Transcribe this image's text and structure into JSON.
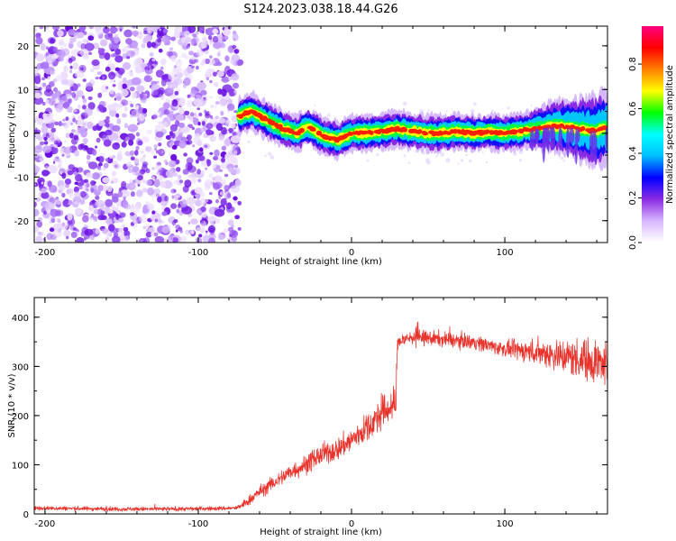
{
  "title": "S124.2023.038.18.44.G26",
  "chart_data": [
    {
      "type": "heatmap",
      "xlabel": "Height of straight line (km)",
      "ylabel": "Frequency (Hz)",
      "xlim": [
        -207,
        167
      ],
      "ylim": [
        -25,
        24.5
      ],
      "x_ticks": [
        -200,
        -100,
        0,
        100
      ],
      "y_ticks": [
        -20,
        -10,
        0,
        10,
        20
      ],
      "colorbar": {
        "label": "Normalized spectral amplitude",
        "ticks": [
          0.0,
          0.2,
          0.4,
          0.6,
          0.8
        ],
        "range": [
          0,
          0.97
        ],
        "colors": [
          "#ffffff",
          "#d8b8ff",
          "#8a2be2",
          "#0000ff",
          "#00bfff",
          "#00ffff",
          "#00ff00",
          "#ffff00",
          "#ff8000",
          "#ff0000",
          "#ff0080"
        ]
      },
      "noise_region_x": [
        -207,
        -73
      ],
      "signal_trace": {
        "x": [
          -73,
          -65,
          -60,
          -55,
          -50,
          -45,
          -40,
          -35,
          -30,
          -25,
          -20,
          -15,
          -10,
          -5,
          0,
          10,
          20,
          30,
          40,
          50,
          60,
          70,
          80,
          90,
          100,
          110,
          120,
          130,
          140,
          150,
          160,
          167
        ],
        "freq": [
          4,
          5,
          4,
          3,
          2,
          1,
          0.5,
          0,
          1.5,
          1,
          -0.5,
          -1,
          -1.5,
          -1,
          0,
          0,
          0.5,
          1,
          0.5,
          0,
          0,
          0.5,
          0,
          0.3,
          0,
          0.5,
          1,
          1.5,
          1.5,
          1,
          0.5,
          1.5
        ]
      }
    },
    {
      "type": "line",
      "xlabel": "Height of straight line (km)",
      "ylabel": "SNR (10 * v/v)",
      "xlim": [
        -207,
        167
      ],
      "ylim": [
        0,
        440
      ],
      "x_ticks": [
        -200,
        -100,
        0,
        100
      ],
      "y_ticks": [
        0,
        100,
        200,
        300,
        400
      ],
      "color": "#e8332c",
      "series": [
        {
          "x": [
            -207,
            -180,
            -150,
            -120,
            -90,
            -75,
            -70,
            -60,
            -50,
            -40,
            -30,
            -20,
            -10,
            0,
            10,
            20,
            29,
            30,
            40,
            60,
            80,
            100,
            120,
            140,
            160,
            167
          ],
          "values": [
            12,
            11,
            10,
            10,
            11,
            12,
            20,
            45,
            65,
            85,
            100,
            120,
            130,
            150,
            175,
            205,
            225,
            350,
            360,
            355,
            350,
            335,
            330,
            320,
            310,
            300
          ]
        }
      ]
    }
  ]
}
